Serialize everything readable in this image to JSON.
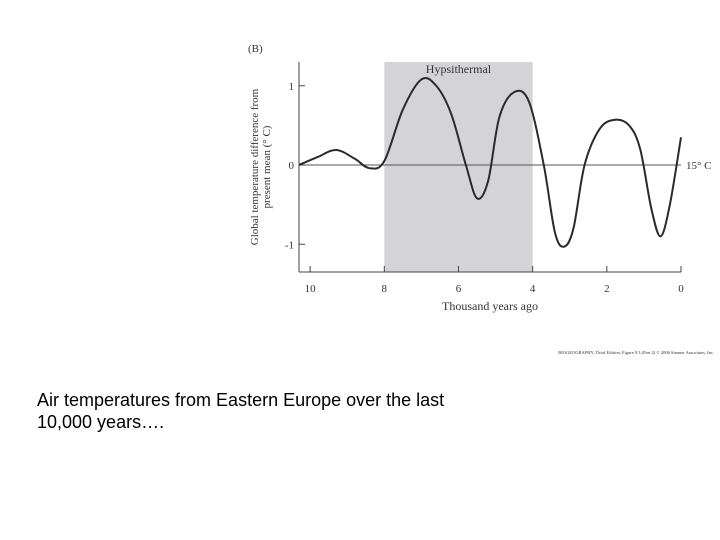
{
  "chart_data": {
    "type": "line",
    "panel_label": "(B)",
    "shade_label": "Hypsithermal",
    "shade_range": [
      8,
      4
    ],
    "shade_color": "#d4d4d6",
    "reference_value": 0,
    "reference_label": "15° C",
    "xlabel": "Thousand years ago",
    "ylabel": [
      "Global temperature difference from",
      "present mean (° C)"
    ],
    "xlim": [
      10.3,
      0
    ],
    "xticks": [
      10,
      8,
      6,
      4,
      2,
      0
    ],
    "ylim": [
      -1.35,
      1.3
    ],
    "yticks": [
      1,
      0,
      -1
    ],
    "x": [
      10.3,
      9.8,
      9.3,
      8.8,
      8.4,
      8.0,
      7.5,
      7.0,
      6.6,
      6.2,
      5.8,
      5.5,
      5.2,
      4.9,
      4.5,
      4.1,
      3.7,
      3.4,
      3.15,
      2.9,
      2.6,
      2.2,
      1.8,
      1.4,
      1.1,
      0.8,
      0.55,
      0.3,
      0
    ],
    "series": [
      {
        "color": "#2a2a2a",
        "values": [
          0,
          0.1,
          0.19,
          0.08,
          -0.04,
          0.05,
          0.7,
          1.08,
          1.0,
          0.65,
          0.0,
          -0.42,
          -0.2,
          0.6,
          0.92,
          0.8,
          0.0,
          -0.85,
          -1.03,
          -0.8,
          0.0,
          0.45,
          0.57,
          0.5,
          0.2,
          -0.55,
          -0.9,
          -0.5,
          0.35
        ]
      }
    ],
    "credit": "BIOGEOGRAPHY, Third Edition, Figure 9.3 (Part 2) © 2006 Sinauer Associates, Inc."
  },
  "caption": "Air temperatures from Eastern Europe over the last 10,000 years…."
}
